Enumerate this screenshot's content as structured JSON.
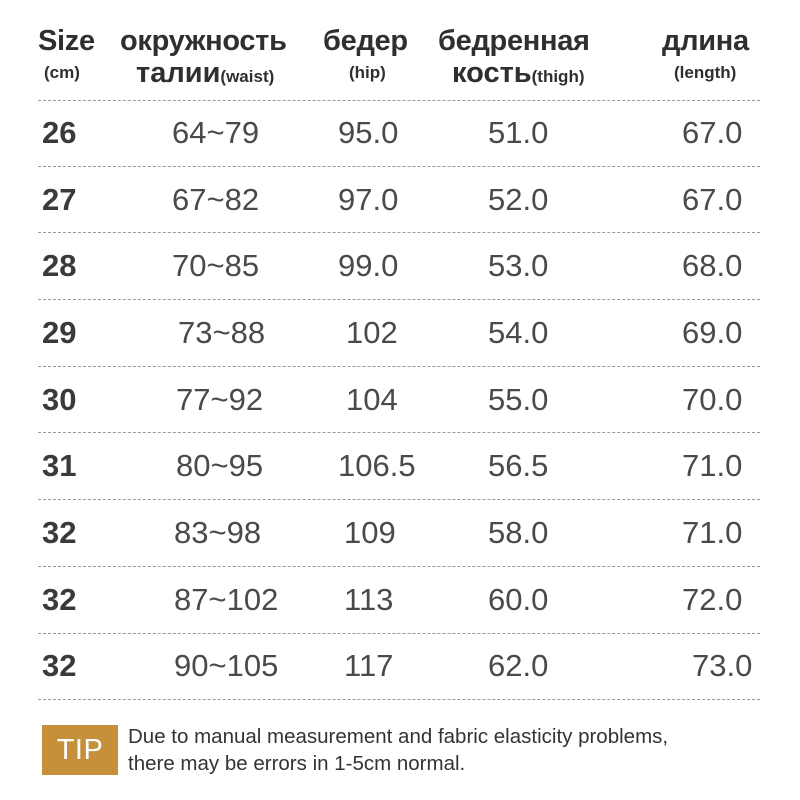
{
  "header": {
    "size": {
      "main": "Size",
      "sub": "(cm)"
    },
    "waist": {
      "main": "окружность",
      "sub_big": "талии",
      "sub_small": "(waist)"
    },
    "hip": {
      "main": "бедер",
      "sub": "(hip)"
    },
    "thigh": {
      "main": "бедренная",
      "sub_big": "кость",
      "sub_small": "(thigh)"
    },
    "length": {
      "main": "длина",
      "sub": "(length)"
    }
  },
  "rows": [
    {
      "size": "26",
      "waist": "64~79",
      "hip": "95.0",
      "thigh": "51.0",
      "length": "67.0"
    },
    {
      "size": "27",
      "waist": "67~82",
      "hip": "97.0",
      "thigh": "52.0",
      "length": "67.0"
    },
    {
      "size": "28",
      "waist": "70~85",
      "hip": "99.0",
      "thigh": "53.0",
      "length": "68.0"
    },
    {
      "size": "29",
      "waist": "73~88",
      "hip": "102",
      "thigh": "54.0",
      "length": "69.0"
    },
    {
      "size": "30",
      "waist": "77~92",
      "hip": "104",
      "thigh": "55.0",
      "length": "70.0"
    },
    {
      "size": "31",
      "waist": "80~95",
      "hip": "106.5",
      "thigh": "56.5",
      "length": "71.0"
    },
    {
      "size": "32",
      "waist": "83~98",
      "hip": "109",
      "thigh": "58.0",
      "length": "71.0"
    },
    {
      "size": "32",
      "waist": "87~102",
      "hip": "113",
      "thigh": "60.0",
      "length": "72.0"
    },
    {
      "size": "32",
      "waist": "90~105",
      "hip": "117",
      "thigh": "62.0",
      "length": "73.0"
    }
  ],
  "tip": {
    "badge": "TIP",
    "line1": "Due to manual measurement and fabric elasticity problems,",
    "line2": "there may be errors in 1-5cm normal."
  },
  "colors": {
    "badge": "#c6903a",
    "text": "#3a3a3a",
    "divider": "#9a9a9a"
  }
}
